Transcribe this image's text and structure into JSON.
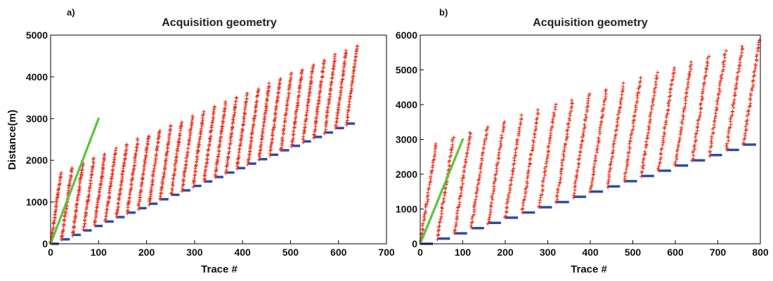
{
  "chart_data": [
    {
      "panel": "a)",
      "type": "scatter",
      "title": "Acquisition geometry",
      "xlabel": "Trace #",
      "ylabel": "Distance(m)",
      "xlim": [
        0,
        700
      ],
      "ylim": [
        0,
        5000
      ],
      "xticks": [
        0,
        100,
        200,
        300,
        400,
        500,
        600,
        700
      ],
      "yticks": [
        0,
        1000,
        2000,
        3000,
        4000,
        5000
      ],
      "series": [
        {
          "name": "receivers",
          "marker": "+",
          "color": "#e8321e",
          "groups": {
            "x_start": 0,
            "x_end": 640,
            "count": 28,
            "y_start": 1700,
            "y_end": 4750
          }
        },
        {
          "name": "sources",
          "marker": "segment",
          "color": "#2a4ea6",
          "steps": {
            "x_start": 0,
            "x_end": 640,
            "count": 28,
            "y_start": 0,
            "y_end": 2880
          }
        },
        {
          "name": "line",
          "marker": "line",
          "color": "#5cc23c",
          "x": [
            0,
            100
          ],
          "y": [
            0,
            3000
          ]
        }
      ]
    },
    {
      "panel": "b)",
      "type": "scatter",
      "title": "Acquisition geometry",
      "xlabel": "Trace #",
      "ylabel": "",
      "xlim": [
        0,
        800
      ],
      "ylim": [
        0,
        6000
      ],
      "xticks": [
        0,
        100,
        200,
        300,
        400,
        500,
        600,
        700,
        800
      ],
      "yticks": [
        0,
        1000,
        2000,
        3000,
        4000,
        5000,
        6000
      ],
      "series": [
        {
          "name": "receivers",
          "marker": "+",
          "color": "#e8321e",
          "groups": {
            "x_start": 0,
            "x_end": 800,
            "count": 20,
            "y_start": 2900,
            "y_end": 5850
          }
        },
        {
          "name": "sources",
          "marker": "segment",
          "color": "#2a4ea6",
          "steps": {
            "x_start": 0,
            "x_end": 800,
            "count": 20,
            "y_start": 0,
            "y_end": 2850
          }
        },
        {
          "name": "line",
          "marker": "line",
          "color": "#5cc23c",
          "x": [
            0,
            100
          ],
          "y": [
            0,
            3000
          ]
        }
      ]
    }
  ]
}
